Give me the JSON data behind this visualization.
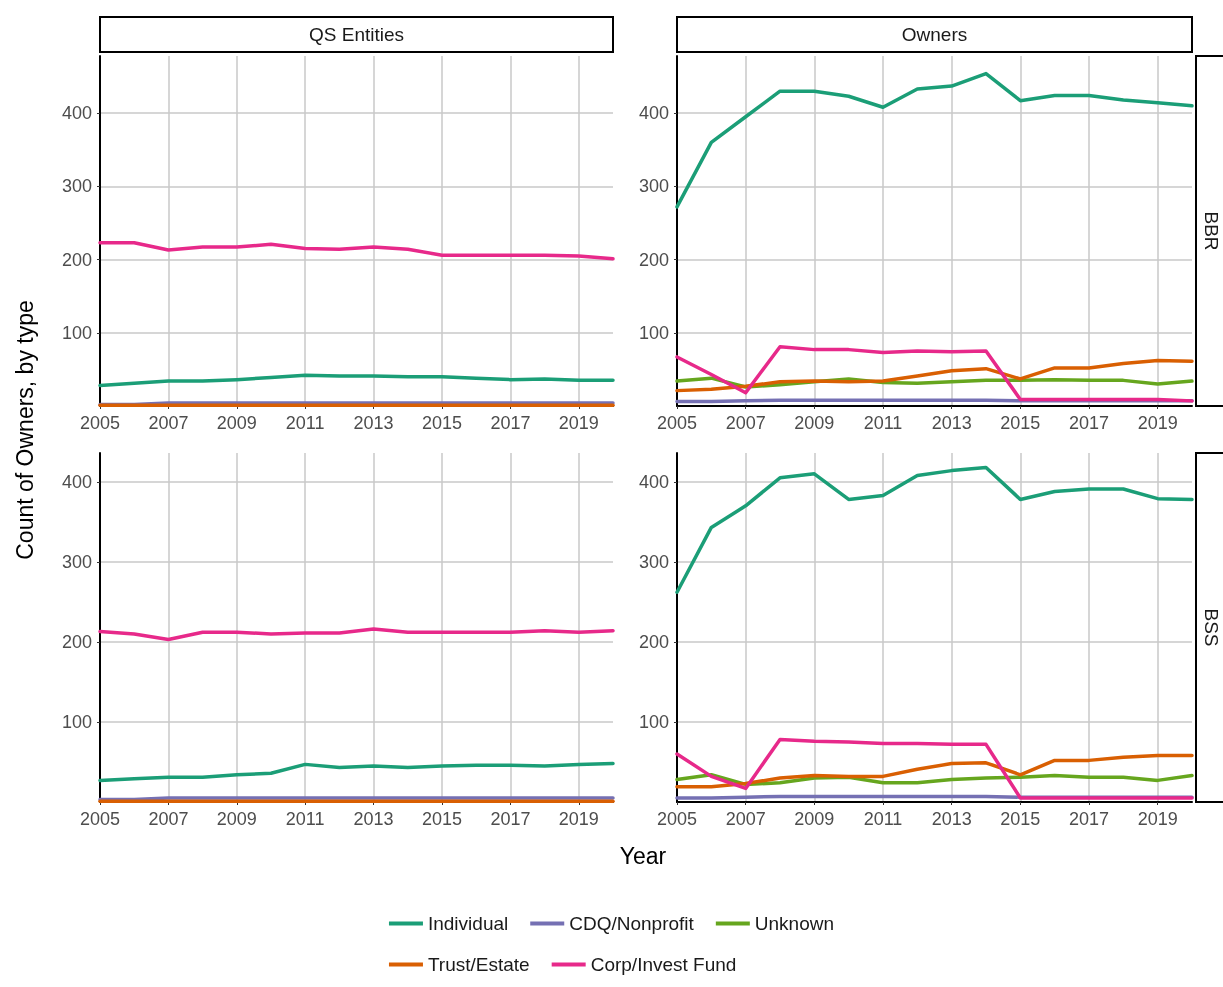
{
  "chart_data": [
    {
      "type": "line",
      "title": "QS Entities",
      "x": [
        2005,
        2006,
        2007,
        2008,
        2009,
        2010,
        2011,
        2012,
        2013,
        2014,
        2015,
        2016,
        2017,
        2018,
        2019,
        2020
      ],
      "xlim": [
        2005,
        2020
      ],
      "xticks": [
        2005,
        2007,
        2009,
        2011,
        2013,
        2015,
        2017,
        2019
      ],
      "ylim": [
        0,
        478
      ],
      "yticks": [
        100,
        200,
        300,
        400
      ],
      "grid": true,
      "line_style": "solid",
      "series": [
        {
          "color": "#1b9e77",
          "values": [
            28,
            31,
            34,
            34,
            36,
            39,
            42,
            41,
            41,
            40,
            40,
            38,
            36,
            37,
            35,
            35
          ]
        },
        {
          "color": "#7570b3",
          "values": [
            2,
            2,
            4,
            4,
            4,
            4,
            4,
            4,
            4,
            4,
            4,
            4,
            4,
            4,
            4,
            4
          ]
        },
        {
          "color": "#d95f02",
          "values": [
            1,
            1,
            1,
            1,
            1,
            1,
            1,
            1,
            1,
            1,
            1,
            1,
            1,
            1,
            1,
            1
          ]
        },
        {
          "color": "#e7298a",
          "values": [
            223,
            223,
            213,
            217,
            217,
            221,
            215,
            214,
            217,
            214,
            206,
            206,
            206,
            206,
            205,
            201
          ]
        }
      ]
    },
    {
      "type": "line",
      "title": "Owners",
      "annotations": [
        "BBR"
      ],
      "x": [
        2005,
        2006,
        2007,
        2008,
        2009,
        2010,
        2011,
        2012,
        2013,
        2014,
        2015,
        2016,
        2017,
        2018,
        2019,
        2020
      ],
      "xlim": [
        2005,
        2020
      ],
      "xticks": [
        2005,
        2007,
        2009,
        2011,
        2013,
        2015,
        2017,
        2019
      ],
      "ylim": [
        0,
        478
      ],
      "yticks": [
        100,
        200,
        300,
        400
      ],
      "grid": true,
      "line_style": "solid",
      "series": [
        {
          "color": "#1b9e77",
          "values": [
            272,
            360,
            395,
            430,
            430,
            423,
            408,
            433,
            437,
            454,
            417,
            424,
            424,
            418,
            414,
            410
          ]
        },
        {
          "color": "#7570b3",
          "values": [
            6,
            6,
            7,
            8,
            8,
            8,
            8,
            8,
            8,
            8,
            7,
            7,
            7,
            7,
            7,
            7
          ]
        },
        {
          "color": "#66a61e",
          "values": [
            34,
            38,
            26,
            29,
            33,
            37,
            32,
            31,
            33,
            35,
            35,
            36,
            35,
            35,
            30,
            34
          ]
        },
        {
          "color": "#d95f02",
          "values": [
            21,
            23,
            27,
            33,
            34,
            33,
            34,
            41,
            48,
            51,
            37,
            52,
            52,
            58,
            62,
            61
          ]
        },
        {
          "color": "#e7298a",
          "values": [
            67,
            43,
            18,
            81,
            77,
            77,
            73,
            75,
            74,
            75,
            9,
            9,
            9,
            9,
            9,
            7
          ]
        }
      ]
    },
    {
      "type": "line",
      "x": [
        2005,
        2006,
        2007,
        2008,
        2009,
        2010,
        2011,
        2012,
        2013,
        2014,
        2015,
        2016,
        2017,
        2018,
        2019,
        2020
      ],
      "xlim": [
        2005,
        2020
      ],
      "xticks": [
        2005,
        2007,
        2009,
        2011,
        2013,
        2015,
        2017,
        2019
      ],
      "ylim": [
        0,
        436
      ],
      "yticks": [
        100,
        200,
        300,
        400
      ],
      "grid": true,
      "line_style": "solid",
      "series": [
        {
          "color": "#1b9e77",
          "values": [
            27,
            29,
            31,
            31,
            34,
            36,
            47,
            43,
            45,
            43,
            45,
            46,
            46,
            45,
            47,
            48
          ]
        },
        {
          "color": "#7570b3",
          "values": [
            3,
            3,
            5,
            5,
            5,
            5,
            5,
            5,
            5,
            5,
            5,
            5,
            5,
            5,
            5,
            5
          ]
        },
        {
          "color": "#d95f02",
          "values": [
            1,
            1,
            1,
            1,
            1,
            1,
            1,
            1,
            1,
            1,
            1,
            1,
            1,
            1,
            1,
            1
          ]
        },
        {
          "color": "#e7298a",
          "values": [
            213,
            210,
            203,
            212,
            212,
            210,
            211,
            211,
            216,
            212,
            212,
            212,
            212,
            214,
            212,
            214
          ]
        }
      ]
    },
    {
      "type": "line",
      "xlabel": "Year",
      "ylabel": "Count of Owners, by type",
      "annotations": [
        "BSS"
      ],
      "legend": "bottom",
      "x": [
        2005,
        2006,
        2007,
        2008,
        2009,
        2010,
        2011,
        2012,
        2013,
        2014,
        2015,
        2016,
        2017,
        2018,
        2019,
        2020
      ],
      "xlim": [
        2005,
        2020
      ],
      "xticks": [
        2005,
        2007,
        2009,
        2011,
        2013,
        2015,
        2017,
        2019
      ],
      "ylim": [
        0,
        436
      ],
      "yticks": [
        100,
        200,
        300,
        400
      ],
      "grid": true,
      "line_style": "solid",
      "series": [
        {
          "name": "Individual",
          "color": "#1b9e77",
          "values": [
            262,
            343,
            370,
            405,
            410,
            378,
            383,
            408,
            414,
            418,
            378,
            388,
            391,
            391,
            379,
            378
          ]
        },
        {
          "name": "CDQ/Nonprofit",
          "color": "#7570b3",
          "values": [
            5,
            5,
            6,
            7,
            7,
            7,
            7,
            7,
            7,
            7,
            6,
            6,
            6,
            6,
            6,
            6
          ]
        },
        {
          "name": "Unknown",
          "color": "#66a61e",
          "values": [
            28,
            34,
            22,
            24,
            30,
            31,
            24,
            24,
            28,
            30,
            31,
            33,
            31,
            31,
            27,
            33
          ]
        },
        {
          "name": "Trust/Estate",
          "color": "#d95f02",
          "values": [
            19,
            19,
            23,
            30,
            33,
            32,
            32,
            41,
            48,
            49,
            34,
            52,
            52,
            56,
            58,
            58
          ]
        },
        {
          "name": "Corp/Invest Fund",
          "color": "#e7298a",
          "values": [
            60,
            32,
            17,
            78,
            76,
            75,
            73,
            73,
            72,
            72,
            5,
            5,
            5,
            5,
            5,
            5
          ]
        }
      ]
    }
  ]
}
